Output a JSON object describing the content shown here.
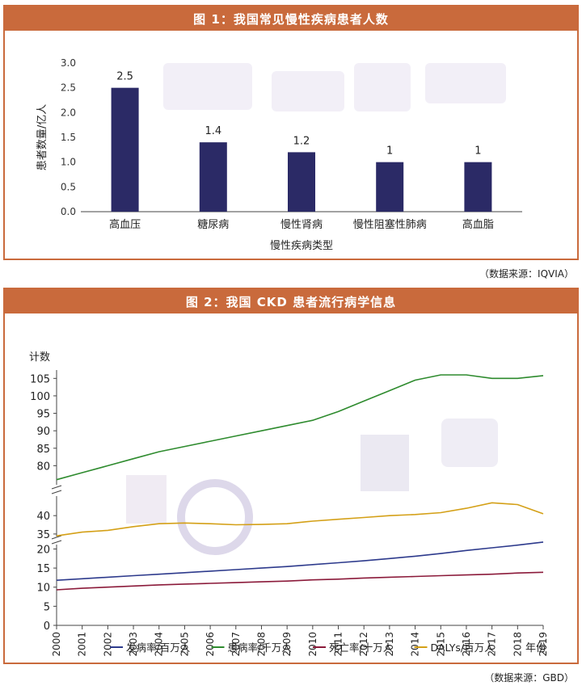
{
  "chart1_title": "图 1：我国常见慢性疾病患者人数",
  "chart1_source": "（数据来源：IQVIA）",
  "chart2_title": "图 2：我国 CKD 患者流行病学信息",
  "chart2_source": "（数据来源：GBD）",
  "colors": {
    "accent": "#c96a3c",
    "bar": "#2b2a66",
    "incidence": "#2d3a8c",
    "prevalence": "#2e8b2e",
    "mortality": "#8b1a3a",
    "dalys": "#d4a017"
  },
  "chart_data": [
    {
      "type": "bar",
      "title": "图 1：我国常见慢性疾病患者人数",
      "xlabel": "慢性疾病类型",
      "ylabel": "患者数量/亿人",
      "categories": [
        "高血压",
        "糖尿病",
        "慢性肾病",
        "慢性阻塞性肺病",
        "高血脂"
      ],
      "values": [
        2.5,
        1.4,
        1.2,
        1,
        1
      ],
      "value_labels": [
        "2.5",
        "1.4",
        "1.2",
        "1",
        "1"
      ],
      "ylim": [
        0,
        3
      ],
      "yticks": [
        "0.0",
        "0.5",
        "1.0",
        "1.5",
        "2.0",
        "2.5",
        "3.0"
      ],
      "grid": false
    },
    {
      "type": "line",
      "title": "图 2：我国 CKD 患者流行病学信息",
      "xlabel": "年份",
      "ylabel": "计数",
      "x": [
        "2000",
        "2001",
        "2002",
        "2003",
        "2004",
        "2005",
        "2006",
        "2007",
        "2008",
        "2009",
        "2010",
        "2011",
        "2012",
        "2013",
        "2014",
        "2015",
        "2016",
        "2017",
        "2018",
        "2019"
      ],
      "yticks_bottom": [
        "0",
        "5",
        "10",
        "15",
        "20"
      ],
      "yticks_mid": [
        "35",
        "40"
      ],
      "yticks_top": [
        "80",
        "85",
        "90",
        "95",
        "100",
        "105"
      ],
      "legend_position": "bottom",
      "series": [
        {
          "name": "发病率/百万人",
          "color": "#2d3a8c",
          "values": [
            11.8,
            12.2,
            12.6,
            13.0,
            13.4,
            13.8,
            14.2,
            14.6,
            15.0,
            15.4,
            15.9,
            16.4,
            16.9,
            17.5,
            18.1,
            18.8,
            19.6,
            20.3,
            21.0,
            21.8
          ]
        },
        {
          "name": "患病率/千万人",
          "color": "#2e8b2e",
          "values": [
            76.0,
            78.0,
            80.0,
            82.0,
            84.0,
            85.5,
            87.0,
            88.5,
            90.0,
            91.5,
            93.0,
            95.5,
            98.5,
            101.5,
            104.5,
            106.0,
            106.0,
            105.0,
            105.0,
            105.8
          ]
        },
        {
          "name": "死亡率/十万人",
          "color": "#8b1a3a",
          "values": [
            9.3,
            9.7,
            10.0,
            10.3,
            10.6,
            10.8,
            11.0,
            11.2,
            11.4,
            11.6,
            11.9,
            12.1,
            12.4,
            12.6,
            12.8,
            13.0,
            13.2,
            13.4,
            13.7,
            13.9
          ]
        },
        {
          "name": "DALYs/百万人",
          "color": "#d4a017",
          "values": [
            34.5,
            35.5,
            36.0,
            37.0,
            37.8,
            38.0,
            37.8,
            37.5,
            37.6,
            37.8,
            38.5,
            39.0,
            39.5,
            40.0,
            40.3,
            40.8,
            42.0,
            43.5,
            43.0,
            40.5
          ]
        }
      ]
    }
  ]
}
